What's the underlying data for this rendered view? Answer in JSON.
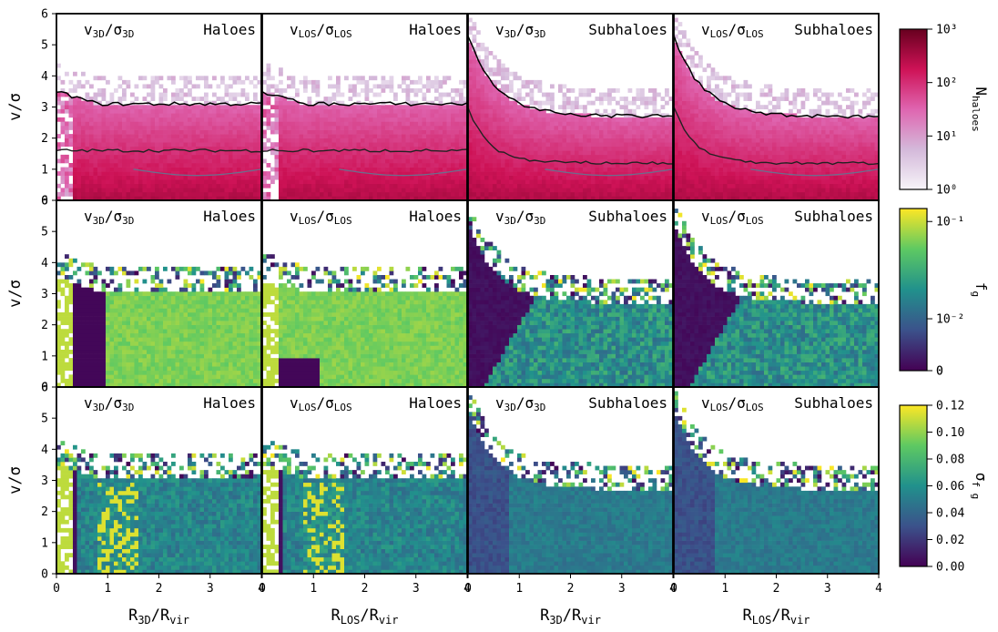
{
  "figure": {
    "ylabel": "v/σ",
    "panel_x_ticks": [
      "0",
      "1",
      "2",
      "3",
      "4"
    ],
    "panel_y_ticks": [
      "0",
      "1",
      "2",
      "3",
      "4",
      "5",
      "6"
    ],
    "x_tick_values": [
      0,
      1,
      2,
      3,
      4
    ],
    "y_tick_values": [
      0,
      1,
      2,
      3,
      4,
      5,
      6
    ],
    "column_xlabels": [
      {
        "base": "R",
        "sub": "3D",
        "rest": "/R",
        "sub2": "vir"
      },
      {
        "base": "R",
        "sub": "LOS",
        "rest": "/R",
        "sub2": "vir"
      },
      {
        "base": "R",
        "sub": "3D",
        "rest": "/R",
        "sub2": "vir"
      },
      {
        "base": "R",
        "sub": "LOS",
        "rest": "/R",
        "sub2": "vir"
      }
    ],
    "column_titles": [
      {
        "ratio": {
          "a": "v",
          "asub": "3D",
          "b": "/σ",
          "bsub": "3D"
        },
        "kind": "Haloes"
      },
      {
        "ratio": {
          "a": "v",
          "asub": "LOS",
          "b": "/σ",
          "bsub": "LOS"
        },
        "kind": "Haloes"
      },
      {
        "ratio": {
          "a": "v",
          "asub": "3D",
          "b": "/σ",
          "bsub": "3D"
        },
        "kind": "Subhaloes"
      },
      {
        "ratio": {
          "a": "v",
          "asub": "LOS",
          "b": "/σ",
          "bsub": "LOS"
        },
        "kind": "Subhaloes"
      }
    ],
    "colorbars": [
      {
        "label": "N",
        "label_sub": "haloes",
        "ticks": [
          "10⁰",
          "10¹",
          "10²",
          "10³"
        ],
        "tick_values": [
          0,
          1,
          2,
          3
        ],
        "scale": "log",
        "cmap": "PuRd"
      },
      {
        "label": "f",
        "label_sub": "g",
        "ticks": [
          "0",
          "0",
          "10⁻²",
          "10⁻¹"
        ],
        "tick_values": [
          0,
          0,
          0.01,
          0.1
        ],
        "scale": "symlog",
        "cmap": "viridis"
      },
      {
        "label": "σ",
        "label_sub": "f g",
        "ticks": [
          "0.00",
          "0.02",
          "0.04",
          "0.06",
          "0.08",
          "0.10",
          "0.12"
        ],
        "tick_values": [
          0,
          0.02,
          0.04,
          0.06,
          0.08,
          0.1,
          0.12
        ],
        "scale": "linear",
        "cmap": "viridis"
      }
    ]
  },
  "chart_data": [
    {
      "type": "heatmap",
      "row": "N_haloes",
      "column": "Haloes 3D",
      "x_range": [
        0,
        4
      ],
      "y_range": [
        0,
        6
      ],
      "xlabel": "R3D/Rvir",
      "ylabel": "v/σ",
      "colorbar": "N_haloes (log, 1 to 1000)",
      "contours": true,
      "overlay": "contour lines"
    },
    {
      "type": "heatmap",
      "row": "N_haloes",
      "column": "Haloes LOS",
      "x_range": [
        0,
        4
      ],
      "y_range": [
        0,
        6
      ],
      "xlabel": "RLOS/Rvir",
      "ylabel": "v/σ",
      "colorbar": "N_haloes (log, 1 to 1000)",
      "contours": true
    },
    {
      "type": "heatmap",
      "row": "N_haloes",
      "column": "Subhaloes 3D",
      "x_range": [
        0,
        4
      ],
      "y_range": [
        0,
        6
      ],
      "xlabel": "R3D/Rvir",
      "ylabel": "v/σ",
      "colorbar": "N_haloes (log, 1 to 1000)",
      "contours": true
    },
    {
      "type": "heatmap",
      "row": "N_haloes",
      "column": "Subhaloes LOS",
      "x_range": [
        0,
        4
      ],
      "y_range": [
        0,
        6
      ],
      "xlabel": "RLOS/Rvir",
      "ylabel": "v/σ",
      "colorbar": "N_haloes (log, 1 to 1000)",
      "contours": true
    },
    {
      "type": "heatmap",
      "row": "f_g",
      "column": "Haloes 3D",
      "x_range": [
        0,
        4
      ],
      "y_range": [
        0,
        6
      ],
      "colorbar": "f_g (symlog, 0 to ~0.15)"
    },
    {
      "type": "heatmap",
      "row": "f_g",
      "column": "Haloes LOS",
      "x_range": [
        0,
        4
      ],
      "y_range": [
        0,
        6
      ],
      "colorbar": "f_g (symlog, 0 to ~0.15)"
    },
    {
      "type": "heatmap",
      "row": "f_g",
      "column": "Subhaloes 3D",
      "x_range": [
        0,
        4
      ],
      "y_range": [
        0,
        6
      ],
      "colorbar": "f_g (symlog, 0 to ~0.15)"
    },
    {
      "type": "heatmap",
      "row": "f_g",
      "column": "Subhaloes LOS",
      "x_range": [
        0,
        4
      ],
      "y_range": [
        0,
        6
      ],
      "colorbar": "f_g (symlog, 0 to ~0.15)"
    },
    {
      "type": "heatmap",
      "row": "sigma_f_g",
      "column": "Haloes 3D",
      "x_range": [
        0,
        4
      ],
      "y_range": [
        0,
        6
      ],
      "colorbar": "σ_fg (linear, 0 to 0.12)"
    },
    {
      "type": "heatmap",
      "row": "sigma_f_g",
      "column": "Haloes LOS",
      "x_range": [
        0,
        4
      ],
      "y_range": [
        0,
        6
      ],
      "colorbar": "σ_fg (linear, 0 to 0.12)"
    },
    {
      "type": "heatmap",
      "row": "sigma_f_g",
      "column": "Subhaloes 3D",
      "x_range": [
        0,
        4
      ],
      "y_range": [
        0,
        6
      ],
      "colorbar": "σ_fg (linear, 0 to 0.12)"
    },
    {
      "type": "heatmap",
      "row": "sigma_f_g",
      "column": "Subhaloes LOS",
      "x_range": [
        0,
        4
      ],
      "y_range": [
        0,
        6
      ],
      "colorbar": "σ_fg (linear, 0 to 0.12)"
    }
  ]
}
